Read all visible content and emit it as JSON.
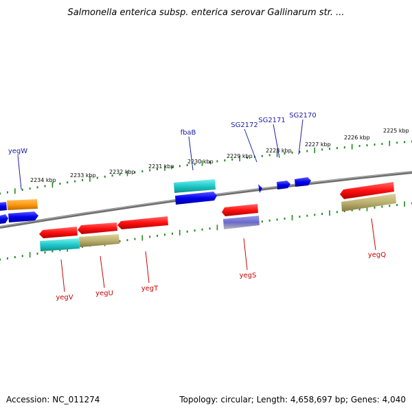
{
  "title": "Salmonella enterica subsp. enterica serovar Gallinarum str. ...",
  "footer": {
    "accession": "Accession: NC_011274",
    "summary": "Topology: circular; Length: 4,658,697 bp; Genes: 4,040"
  },
  "scale_labels": [
    "2234 kbp",
    "2233 kbp",
    "2232 kbp",
    "2231 kbp",
    "2230 kbp",
    "2229 kbp",
    "2228 kbp",
    "2227 kbp",
    "2226 kbp",
    "2225 kbp"
  ],
  "genes_top": [
    "yegW",
    "fbaB",
    "SG2172",
    "SG2171",
    "SG2170"
  ],
  "genes_bottom": [
    "yegV",
    "yegU",
    "yegT",
    "yegS",
    "yegQ"
  ],
  "colors": {
    "backbone": "#808080",
    "tick": "#1e8a1e",
    "red": "#ff1a1a",
    "blue": "#1010ff",
    "cyan": "#20c8c8",
    "orange": "#ff9a10",
    "khaki": "#bcb070",
    "slate": "#7070c8"
  }
}
